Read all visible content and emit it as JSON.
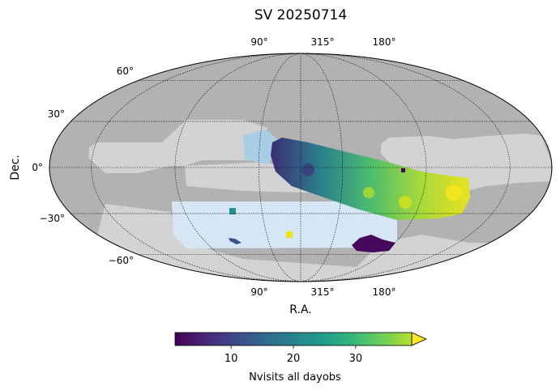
{
  "chart_data": {
    "type": "heatmap",
    "projection": "mollweide",
    "title": "SV 20250714",
    "xlabel": "R.A.",
    "ylabel": "Dec.",
    "ra_tick_labels_top": [
      "90°",
      "315°",
      "180°"
    ],
    "ra_tick_labels_bottom": [
      "90°",
      "315°",
      "180°"
    ],
    "dec_tick_labels": [
      "60°",
      "30°",
      "0°",
      "−30°",
      "−60°"
    ],
    "grid": true,
    "colorbar": {
      "label": "Nvisits all dayobs",
      "ticks": [
        "10",
        "20",
        "30"
      ],
      "range": [
        1,
        39
      ],
      "extend": "max",
      "colormap": "viridis",
      "placement": "bottom"
    },
    "colors": {
      "background_light": "#d3d3d3",
      "background_dark": "#b2b2b2",
      "footprint_light_blue": "#d6e6f5",
      "footprint_mid_blue": "#aacde6"
    }
  }
}
